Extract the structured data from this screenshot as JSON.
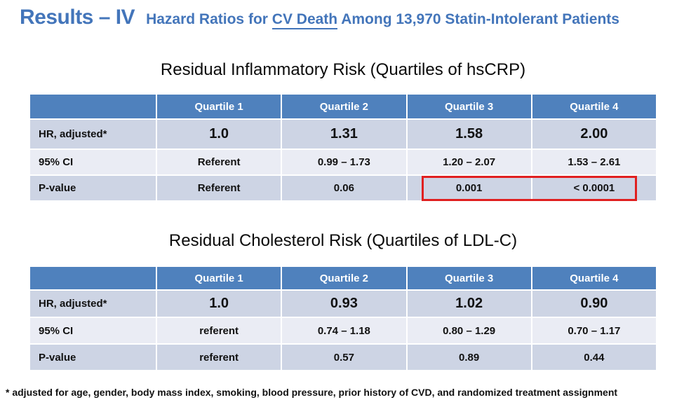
{
  "slide_title": {
    "results_label": "Results – IV",
    "subtitle_pre": "Hazard Ratios for ",
    "subtitle_underlined": "CV Death",
    "subtitle_post": " Among 13,970 Statin-Intolerant Patients"
  },
  "colors": {
    "title_blue": "#4375BA",
    "header_blue": "#4F81BD",
    "band_dark": "#CDD4E4",
    "band_light": "#EAECF4",
    "highlight_red": "#E02020"
  },
  "tables": [
    {
      "title": "Residual Inflammatory Risk (Quartiles of hsCRP)",
      "columns": [
        "",
        "Quartile 1",
        "Quartile 2",
        "Quartile 3",
        "Quartile 4"
      ],
      "rows": [
        {
          "label": "HR, adjusted*",
          "values": [
            "1.0",
            "1.31",
            "1.58",
            "2.00"
          ]
        },
        {
          "label": "95% CI",
          "values": [
            "Referent",
            "0.99 – 1.73",
            "1.20 – 2.07",
            "1.53 – 2.61"
          ]
        },
        {
          "label": "P-value",
          "values": [
            "Referent",
            "0.06",
            "0.001",
            "< 0.0001"
          ]
        }
      ],
      "highlight_note": "red box around P-value cells for Quartile 3 and Quartile 4"
    },
    {
      "title": "Residual Cholesterol Risk (Quartiles of LDL-C)",
      "columns": [
        "",
        "Quartile 1",
        "Quartile 2",
        "Quartile 3",
        "Quartile 4"
      ],
      "rows": [
        {
          "label": "HR, adjusted*",
          "values": [
            "1.0",
            "0.93",
            "1.02",
            "0.90"
          ]
        },
        {
          "label": "95% CI",
          "values": [
            "referent",
            "0.74 – 1.18",
            "0.80 – 1.29",
            "0.70 – 1.17"
          ]
        },
        {
          "label": "P-value",
          "values": [
            "referent",
            "0.57",
            "0.89",
            "0.44"
          ]
        }
      ]
    }
  ],
  "footnote": "* adjusted for age, gender, body mass index, smoking, blood pressure, prior history of CVD, and randomized treatment assignment"
}
